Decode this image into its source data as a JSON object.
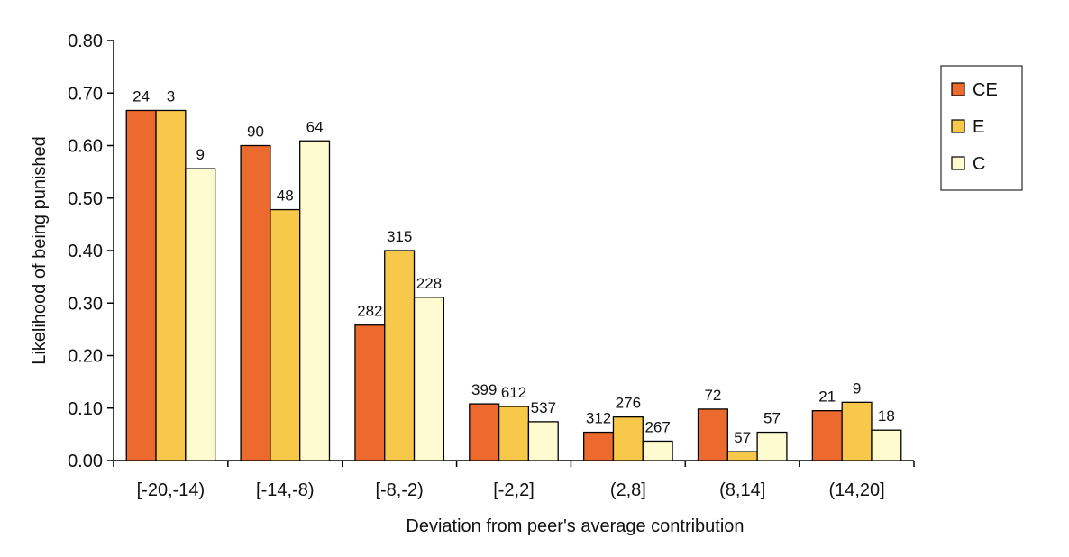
{
  "chart_data": {
    "type": "bar",
    "title": "",
    "xlabel": "Deviation from peer's average contribution",
    "ylabel": "Likelihood of being punished",
    "ylim": [
      0,
      0.8
    ],
    "yticks": [
      "0.00",
      "0.10",
      "0.20",
      "0.30",
      "0.40",
      "0.50",
      "0.60",
      "0.70",
      "0.80"
    ],
    "grid": false,
    "legend_position": "top-right",
    "categories": [
      "[-20,-14)",
      "[-14,-8)",
      "[-8,-2)",
      "[-2,2]",
      "(2,8]",
      "(8,14]",
      "(14,20]"
    ],
    "series": [
      {
        "name": "CE",
        "color": "#ed6a2e",
        "values": [
          0.667,
          0.6,
          0.258,
          0.108,
          0.054,
          0.098,
          0.095
        ],
        "labels": [
          "24",
          "90",
          "282",
          "399",
          "312",
          "72",
          "21"
        ]
      },
      {
        "name": "E",
        "color": "#f7c84a",
        "values": [
          0.667,
          0.478,
          0.4,
          0.103,
          0.083,
          0.017,
          0.111
        ],
        "labels": [
          "3",
          "48",
          "315",
          "612",
          "276",
          "57",
          "9"
        ]
      },
      {
        "name": "C",
        "color": "#fffbd1",
        "values": [
          0.556,
          0.609,
          0.311,
          0.074,
          0.037,
          0.054,
          0.058
        ],
        "labels": [
          "9",
          "64",
          "228",
          "537",
          "267",
          "57",
          "18"
        ]
      }
    ]
  }
}
